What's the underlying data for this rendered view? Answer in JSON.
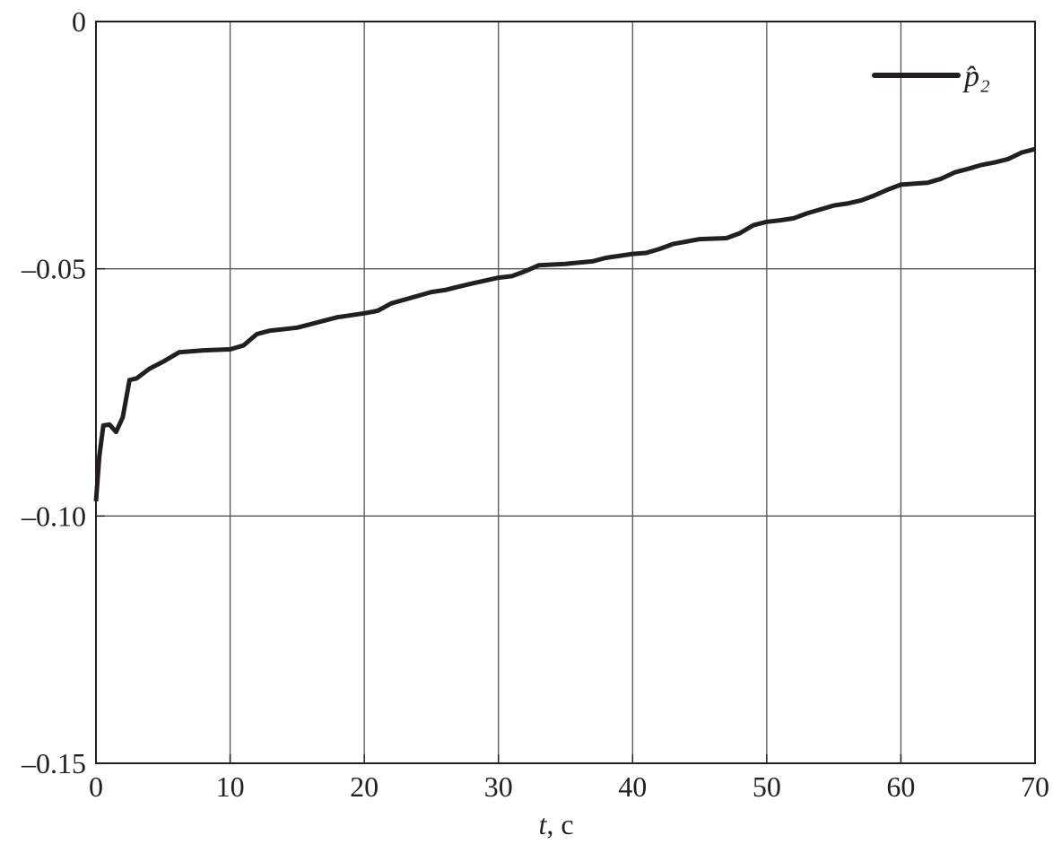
{
  "chart_data": {
    "type": "line",
    "title": "",
    "xlabel_var": "t",
    "xlabel_unit": ", c",
    "ylabel": "",
    "xlim": [
      0,
      70
    ],
    "ylim": [
      -0.15,
      0
    ],
    "xticks": [
      0,
      10,
      20,
      30,
      40,
      50,
      60,
      70
    ],
    "xtick_labels": [
      "0",
      "10",
      "20",
      "30",
      "40",
      "50",
      "60",
      "70"
    ],
    "yticks": [
      0,
      -0.05,
      -0.1,
      -0.15
    ],
    "ytick_labels": [
      "0",
      "–0.05",
      "–0.10",
      "–0.15"
    ],
    "grid": true,
    "legend_placement": "top-right",
    "series": [
      {
        "name": "p̂₂",
        "color": "#231f20",
        "x": [
          0,
          0.25,
          0.55,
          1.0,
          1.5,
          2.0,
          2.5,
          3.0,
          4.0,
          5.0,
          6.2,
          8,
          10,
          11,
          12,
          13,
          15,
          16,
          18,
          20,
          21,
          22,
          25,
          26,
          28,
          30,
          31,
          32,
          33,
          35,
          37,
          38,
          40,
          41,
          42,
          43,
          45,
          47,
          48,
          49,
          50,
          51,
          52,
          53,
          55,
          56,
          57,
          58,
          59,
          60,
          61,
          62,
          63,
          64,
          65,
          66,
          67,
          68,
          69,
          70
        ],
        "y": [
          -0.097,
          -0.088,
          -0.0817,
          -0.0815,
          -0.083,
          -0.08,
          -0.0725,
          -0.0722,
          -0.0702,
          -0.0688,
          -0.0669,
          -0.0665,
          -0.0663,
          -0.0655,
          -0.0632,
          -0.0625,
          -0.0619,
          -0.0612,
          -0.0598,
          -0.059,
          -0.0585,
          -0.057,
          -0.0547,
          -0.0543,
          -0.053,
          -0.0518,
          -0.0515,
          -0.0505,
          -0.0493,
          -0.049,
          -0.0485,
          -0.0478,
          -0.047,
          -0.0468,
          -0.046,
          -0.045,
          -0.044,
          -0.0438,
          -0.0428,
          -0.0412,
          -0.0405,
          -0.0402,
          -0.0398,
          -0.0388,
          -0.0372,
          -0.0368,
          -0.0362,
          -0.0352,
          -0.034,
          -0.033,
          -0.0328,
          -0.0326,
          -0.0318,
          -0.0305,
          -0.0298,
          -0.029,
          -0.0285,
          -0.0278,
          -0.0265,
          -0.0258
        ]
      }
    ]
  }
}
